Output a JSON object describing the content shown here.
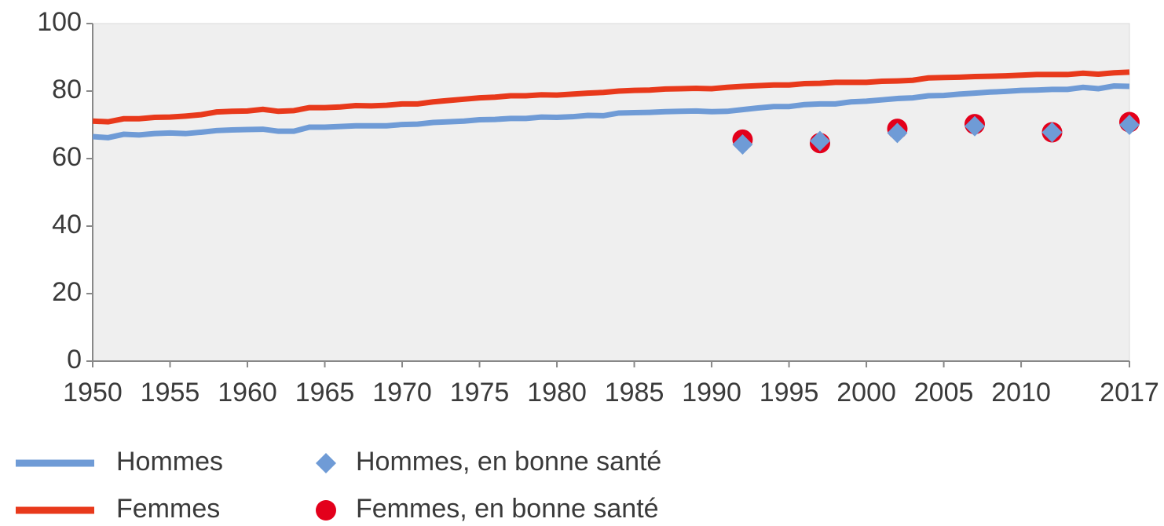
{
  "chart_data": {
    "type": "line",
    "x": [
      1950,
      1951,
      1952,
      1953,
      1954,
      1955,
      1956,
      1957,
      1958,
      1959,
      1960,
      1961,
      1962,
      1963,
      1964,
      1965,
      1966,
      1967,
      1968,
      1969,
      1970,
      1971,
      1972,
      1973,
      1974,
      1975,
      1976,
      1977,
      1978,
      1979,
      1980,
      1981,
      1982,
      1983,
      1984,
      1985,
      1986,
      1987,
      1988,
      1989,
      1990,
      1991,
      1992,
      1993,
      1994,
      1995,
      1996,
      1997,
      1998,
      1999,
      2000,
      2001,
      2002,
      2003,
      2004,
      2005,
      2006,
      2007,
      2008,
      2009,
      2010,
      2011,
      2012,
      2013,
      2014,
      2015,
      2016,
      2017
    ],
    "series": [
      {
        "name": "Hommes",
        "type": "line",
        "color": "#6f9bd6",
        "values": [
          66.5,
          66.2,
          67.2,
          67.0,
          67.4,
          67.6,
          67.4,
          67.8,
          68.3,
          68.5,
          68.6,
          68.7,
          68.1,
          68.1,
          69.3,
          69.3,
          69.5,
          69.7,
          69.7,
          69.7,
          70.1,
          70.2,
          70.7,
          70.9,
          71.1,
          71.5,
          71.6,
          71.9,
          71.9,
          72.3,
          72.2,
          72.4,
          72.8,
          72.7,
          73.5,
          73.6,
          73.7,
          73.9,
          74.0,
          74.1,
          73.9,
          74.0,
          74.5,
          75.0,
          75.4,
          75.4,
          76.0,
          76.2,
          76.2,
          76.8,
          77.0,
          77.4,
          77.8,
          78.0,
          78.6,
          78.7,
          79.1,
          79.4,
          79.7,
          79.9,
          80.2,
          80.3,
          80.5,
          80.5,
          81.1,
          80.7,
          81.5,
          81.4
        ]
      },
      {
        "name": "Femmes",
        "type": "line",
        "color": "#e8391b",
        "values": [
          71.1,
          70.9,
          71.8,
          71.8,
          72.2,
          72.3,
          72.6,
          73.0,
          73.8,
          74.0,
          74.1,
          74.6,
          74.0,
          74.2,
          75.1,
          75.1,
          75.3,
          75.7,
          75.6,
          75.8,
          76.2,
          76.2,
          76.8,
          77.2,
          77.6,
          78.0,
          78.2,
          78.6,
          78.6,
          78.9,
          78.8,
          79.1,
          79.4,
          79.6,
          80.0,
          80.2,
          80.3,
          80.6,
          80.7,
          80.8,
          80.7,
          81.1,
          81.4,
          81.6,
          81.8,
          81.8,
          82.2,
          82.3,
          82.6,
          82.6,
          82.6,
          82.9,
          83.0,
          83.2,
          83.9,
          84.0,
          84.1,
          84.3,
          84.4,
          84.5,
          84.7,
          84.9,
          84.9,
          84.9,
          85.3,
          85.0,
          85.4,
          85.6
        ]
      },
      {
        "name": "Hommes, en bonne santé",
        "type": "scatter",
        "marker": "diamond",
        "color": "#6f9bd6",
        "x": [
          1992,
          1997,
          2002,
          2007,
          2012,
          2017
        ],
        "values": [
          64.2,
          65.2,
          67.6,
          69.6,
          67.8,
          70.0
        ]
      },
      {
        "name": "Femmes, en bonne santé",
        "type": "scatter",
        "marker": "circle",
        "color": "#e3001b",
        "x": [
          1992,
          1997,
          2002,
          2007,
          2012,
          2017
        ],
        "values": [
          65.6,
          64.6,
          68.8,
          70.2,
          67.8,
          70.8
        ]
      }
    ],
    "xlim": [
      1950,
      2017
    ],
    "xticks": [
      1950,
      1955,
      1960,
      1965,
      1970,
      1975,
      1980,
      1985,
      1990,
      1995,
      2000,
      2005,
      2010,
      2017
    ],
    "ylim": [
      0,
      100
    ],
    "yticks": [
      0,
      20,
      40,
      60,
      80,
      100
    ],
    "legend": "bottom"
  }
}
